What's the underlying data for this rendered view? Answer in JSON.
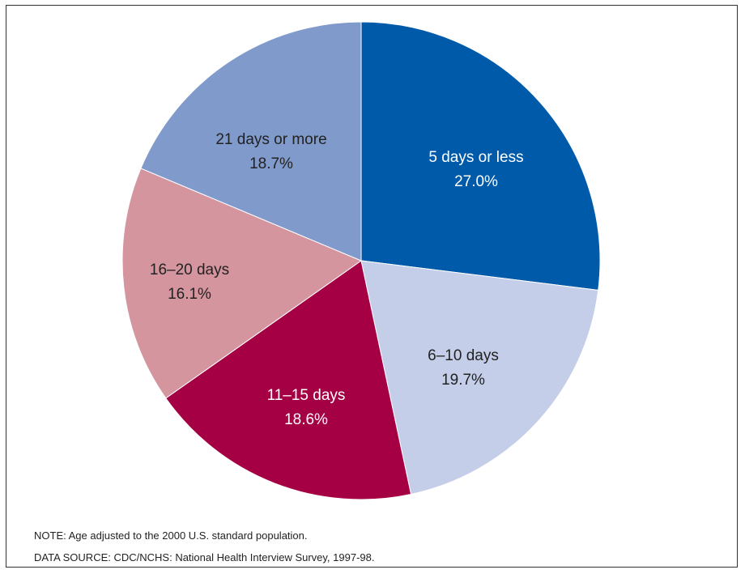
{
  "chart_data": {
    "type": "pie",
    "start_angle_deg": 0,
    "direction": "clockwise",
    "slices": [
      {
        "label": "5 days or less",
        "value": 27.0,
        "value_label": "27.0%",
        "color": "#005aaa",
        "text_color": "#ffffff"
      },
      {
        "label": "6–10 days",
        "value": 19.7,
        "value_label": "19.7%",
        "color": "#c5cee8",
        "text_color": "#222222"
      },
      {
        "label": "11–15 days",
        "value": 18.6,
        "value_label": "18.6%",
        "color": "#a50044",
        "text_color": "#ffffff"
      },
      {
        "label": "16–20 days",
        "value": 16.1,
        "value_label": "16.1%",
        "color": "#d4959f",
        "text_color": "#222222"
      },
      {
        "label": "21 days or more",
        "value": 18.7,
        "value_label": "18.7%",
        "color": "#7f9acb",
        "text_color": "#222222"
      }
    ]
  },
  "notes": {
    "note": "NOTE: Age adjusted to the 2000 U.S. standard population.",
    "source": "DATA SOURCE: CDC/NCHS: National Health Interview Survey, 1997-98."
  }
}
